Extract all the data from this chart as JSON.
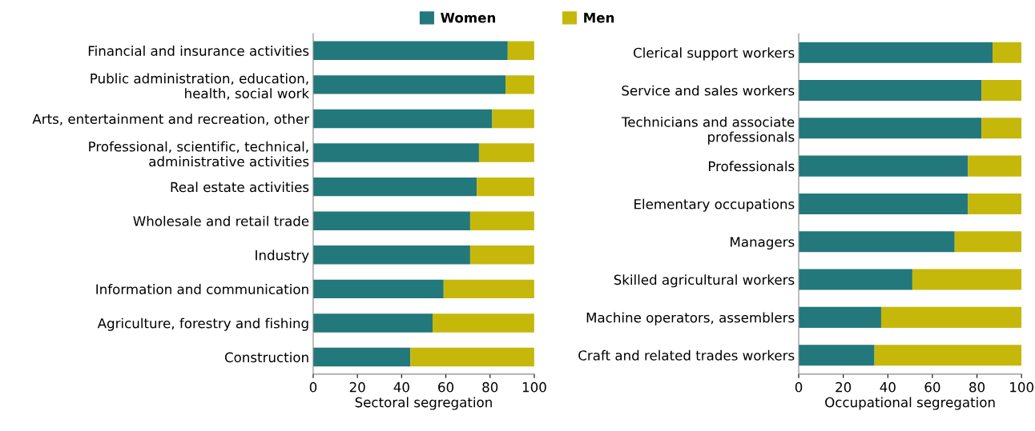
{
  "chart_data": [
    {
      "type": "bar",
      "orientation": "horizontal",
      "stacked": true,
      "xlabel": "Sectoral segregation",
      "legend": "top",
      "categories": [
        "Financial and insurance activities",
        "Public administration, education,\nhealth, social work",
        "Arts, entertainment and recreation, other",
        "Professional, scientific, technical,\nadministrative activities",
        "Real estate activities",
        "Wholesale and retail trade",
        "Industry",
        "Information and communication",
        "Agriculture, forestry and fishing",
        "Construction"
      ],
      "series": [
        {
          "name": "Women",
          "color": "#23787c",
          "values": [
            88,
            87,
            81,
            75,
            74,
            71,
            71,
            59,
            54,
            44
          ]
        },
        {
          "name": "Men",
          "color": "#c5b80b",
          "values": [
            12,
            13,
            19,
            25,
            26,
            29,
            29,
            41,
            46,
            56
          ]
        }
      ],
      "xlim": [
        0,
        100
      ],
      "xticks": [
        0,
        20,
        40,
        60,
        80,
        100
      ],
      "grid": false
    },
    {
      "type": "bar",
      "orientation": "horizontal",
      "stacked": true,
      "xlabel": "Occupational segregation",
      "categories": [
        "Clerical support workers",
        "Service and sales workers",
        "Technicians and associate\nprofessionals",
        "Professionals",
        "Elementary occupations",
        "Managers",
        "Skilled agricultural workers",
        "Machine operators, assemblers",
        "Craft and related trades workers"
      ],
      "series": [
        {
          "color": "#23787c",
          "values": [
            87,
            82,
            82,
            76,
            76,
            70,
            51,
            37,
            34
          ]
        },
        {
          "color": "#c5b80b",
          "values": [
            13,
            18,
            18,
            24,
            24,
            30,
            49,
            63,
            66
          ]
        }
      ],
      "xlim": [
        0,
        100
      ],
      "xticks": [
        0,
        20,
        40,
        60,
        80,
        100
      ],
      "grid": false
    }
  ]
}
